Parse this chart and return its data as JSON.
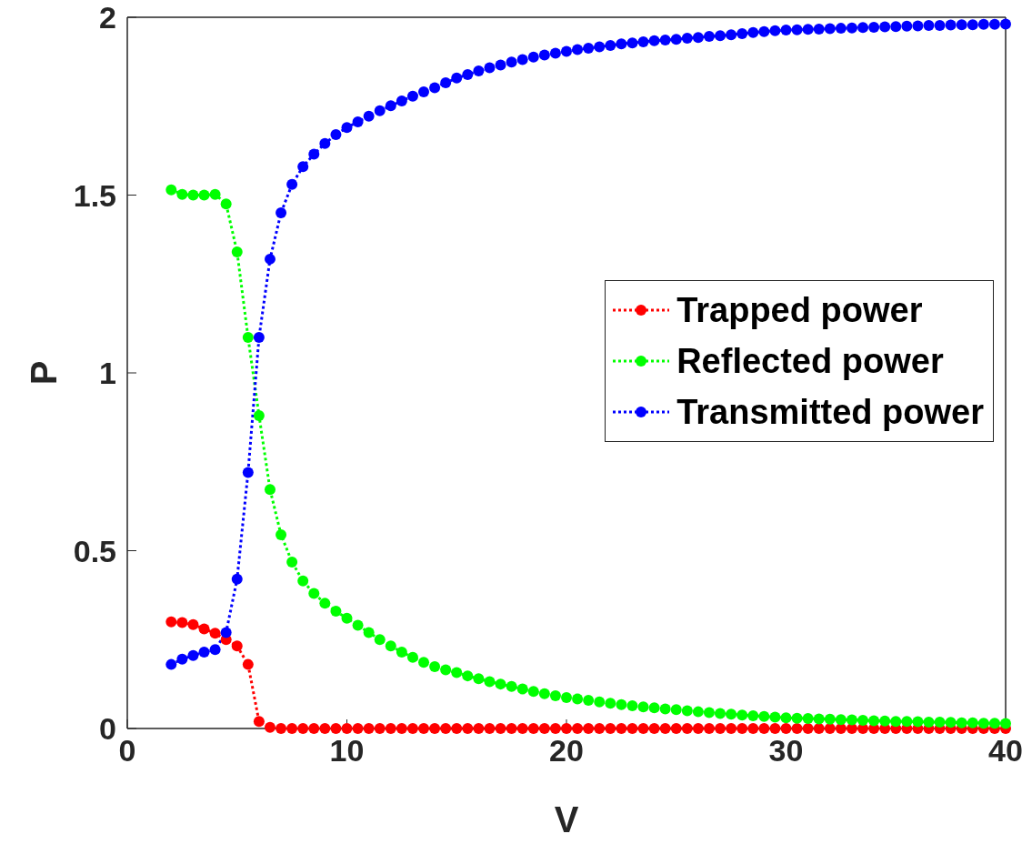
{
  "chart_data": {
    "type": "line",
    "xlabel": "V",
    "ylabel": "P",
    "x": [
      2,
      2.5,
      3,
      3.5,
      4,
      4.5,
      5,
      5.5,
      6,
      6.5,
      7,
      7.5,
      8,
      8.5,
      9,
      9.5,
      10,
      10.5,
      11,
      11.5,
      12,
      12.5,
      13,
      13.5,
      14,
      14.5,
      15,
      15.5,
      16,
      16.5,
      17,
      17.5,
      18,
      18.5,
      19,
      19.5,
      20,
      20.5,
      21,
      21.5,
      22,
      22.5,
      23,
      23.5,
      24,
      24.5,
      25,
      25.5,
      26,
      26.5,
      27,
      27.5,
      28,
      28.5,
      29,
      29.5,
      30,
      30.5,
      31,
      31.5,
      32,
      32.5,
      33,
      33.5,
      34,
      34.5,
      35,
      35.5,
      36,
      36.5,
      37,
      37.5,
      38,
      38.5,
      39,
      39.5,
      40
    ],
    "series": [
      {
        "name": "Trapped power",
        "color": "#ff0000",
        "values": [
          0.3,
          0.298,
          0.292,
          0.28,
          0.268,
          0.25,
          0.232,
          0.18,
          0.02,
          0.003,
          0,
          0,
          0,
          0,
          0,
          0,
          0,
          0,
          0,
          0,
          0,
          0,
          0,
          0,
          0,
          0,
          0,
          0,
          0,
          0,
          0,
          0,
          0,
          0,
          0,
          0,
          0,
          0,
          0,
          0,
          0,
          0,
          0,
          0,
          0,
          0,
          0,
          0,
          0,
          0,
          0,
          0,
          0,
          0,
          0,
          0,
          0,
          0,
          0,
          0,
          0,
          0,
          0,
          0,
          0,
          0,
          0,
          0,
          0,
          0,
          0,
          0,
          0,
          0,
          0,
          0,
          0
        ]
      },
      {
        "name": "Reflected power",
        "color": "#00ff00",
        "values": [
          1.515,
          1.502,
          1.5,
          1.5,
          1.502,
          1.475,
          1.34,
          1.1,
          0.88,
          0.672,
          0.545,
          0.468,
          0.415,
          0.38,
          0.352,
          0.33,
          0.31,
          0.29,
          0.27,
          0.25,
          0.232,
          0.215,
          0.2,
          0.186,
          0.174,
          0.165,
          0.157,
          0.148,
          0.14,
          0.132,
          0.125,
          0.118,
          0.111,
          0.104,
          0.098,
          0.092,
          0.087,
          0.083,
          0.079,
          0.075,
          0.071,
          0.067,
          0.064,
          0.061,
          0.058,
          0.055,
          0.053,
          0.05,
          0.047,
          0.045,
          0.042,
          0.04,
          0.038,
          0.036,
          0.034,
          0.032,
          0.03,
          0.029,
          0.028,
          0.027,
          0.026,
          0.025,
          0.024,
          0.023,
          0.022,
          0.021,
          0.02,
          0.02,
          0.019,
          0.018,
          0.018,
          0.017,
          0.016,
          0.016,
          0.015,
          0.015,
          0.014
        ]
      },
      {
        "name": "Transmitted power",
        "color": "#0000ff",
        "values": [
          0.18,
          0.195,
          0.205,
          0.215,
          0.222,
          0.27,
          0.42,
          0.72,
          1.1,
          1.32,
          1.45,
          1.53,
          1.58,
          1.615,
          1.645,
          1.67,
          1.69,
          1.706,
          1.722,
          1.737,
          1.751,
          1.765,
          1.778,
          1.79,
          1.802,
          1.816,
          1.829,
          1.839,
          1.849,
          1.858,
          1.866,
          1.874,
          1.881,
          1.888,
          1.894,
          1.899,
          1.904,
          1.909,
          1.913,
          1.917,
          1.921,
          1.925,
          1.928,
          1.931,
          1.934,
          1.936,
          1.938,
          1.941,
          1.943,
          1.946,
          1.948,
          1.951,
          1.954,
          1.957,
          1.96,
          1.962,
          1.964,
          1.965,
          1.966,
          1.967,
          1.968,
          1.969,
          1.97,
          1.971,
          1.972,
          1.973,
          1.974,
          1.975,
          1.976,
          1.977,
          1.977,
          1.978,
          1.979,
          1.979,
          1.98,
          1.98,
          1.981
        ]
      }
    ],
    "xlim": [
      0,
      40
    ],
    "xticks": [
      0,
      10,
      20,
      30,
      40
    ],
    "ylim": [
      0,
      2
    ],
    "yticks": [
      0,
      0.5,
      1,
      1.5,
      2
    ],
    "grid": false,
    "legend": "right",
    "marker": "circle",
    "line_style": "dotted"
  }
}
